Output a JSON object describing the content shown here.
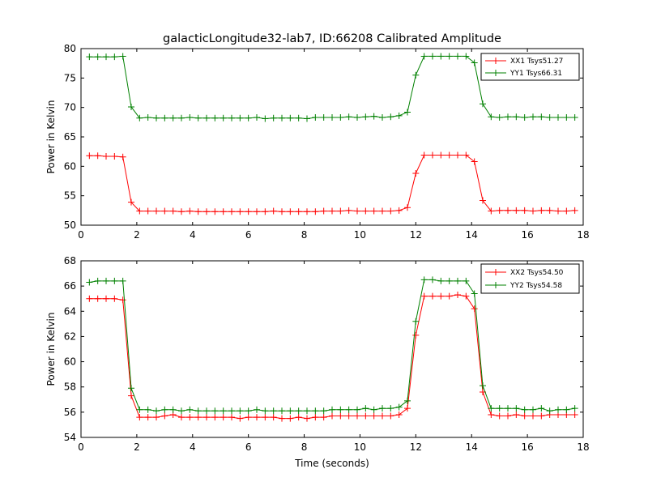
{
  "chart_data": [
    {
      "type": "line",
      "title": "galacticLongitude32-lab7, ID:66208 Calibrated Amplitude",
      "xlabel": "",
      "ylabel": "Power in Kelvin",
      "xlim": [
        0,
        18
      ],
      "ylim": [
        50,
        80
      ],
      "xticks": [
        "0",
        "2",
        "4",
        "6",
        "8",
        "10",
        "12",
        "14",
        "16",
        "18"
      ],
      "yticks": [
        "50",
        "55",
        "60",
        "65",
        "70",
        "75",
        "80"
      ],
      "legend_position": "top-right",
      "grid": false,
      "x": [
        0.3,
        0.6,
        0.9,
        1.2,
        1.5,
        1.8,
        2.1,
        2.4,
        2.7,
        3.0,
        3.3,
        3.6,
        3.9,
        4.2,
        4.5,
        4.8,
        5.1,
        5.4,
        5.7,
        6.0,
        6.3,
        6.6,
        6.9,
        7.2,
        7.5,
        7.8,
        8.1,
        8.4,
        8.7,
        9.0,
        9.3,
        9.6,
        9.9,
        10.2,
        10.5,
        10.8,
        11.1,
        11.4,
        11.7,
        12.0,
        12.3,
        12.6,
        12.9,
        13.2,
        13.5,
        13.8,
        14.1,
        14.4,
        14.7,
        15.0,
        15.3,
        15.6,
        15.9,
        16.2,
        16.5,
        16.8,
        17.1,
        17.4,
        17.7
      ],
      "series": [
        {
          "name": "XX1 Tsys51.27",
          "color": "#ff0000",
          "values": [
            61.8,
            61.8,
            61.7,
            61.7,
            61.6,
            53.9,
            52.4,
            52.4,
            52.4,
            52.4,
            52.4,
            52.3,
            52.4,
            52.3,
            52.3,
            52.3,
            52.3,
            52.3,
            52.3,
            52.3,
            52.3,
            52.3,
            52.4,
            52.3,
            52.3,
            52.3,
            52.3,
            52.3,
            52.4,
            52.4,
            52.4,
            52.5,
            52.4,
            52.4,
            52.4,
            52.4,
            52.4,
            52.5,
            53.0,
            58.8,
            61.9,
            61.9,
            61.9,
            61.9,
            61.9,
            61.9,
            60.8,
            54.2,
            52.4,
            52.5,
            52.5,
            52.5,
            52.5,
            52.4,
            52.5,
            52.5,
            52.4,
            52.4,
            52.5
          ]
        },
        {
          "name": "YY1 Tsys66.31",
          "color": "#008000",
          "values": [
            78.6,
            78.6,
            78.6,
            78.6,
            78.7,
            70.1,
            68.2,
            68.3,
            68.2,
            68.2,
            68.2,
            68.2,
            68.3,
            68.2,
            68.2,
            68.2,
            68.2,
            68.2,
            68.2,
            68.2,
            68.3,
            68.1,
            68.2,
            68.2,
            68.2,
            68.2,
            68.1,
            68.3,
            68.3,
            68.3,
            68.3,
            68.4,
            68.3,
            68.4,
            68.5,
            68.3,
            68.4,
            68.6,
            69.2,
            75.5,
            78.7,
            78.7,
            78.7,
            78.7,
            78.7,
            78.7,
            77.6,
            70.6,
            68.4,
            68.3,
            68.4,
            68.4,
            68.3,
            68.4,
            68.4,
            68.3,
            68.3,
            68.3,
            68.3
          ]
        }
      ]
    },
    {
      "type": "line",
      "title": "",
      "xlabel": "Time (seconds)",
      "ylabel": "Power in Kelvin",
      "xlim": [
        0,
        18
      ],
      "ylim": [
        54,
        68
      ],
      "xticks": [
        "0",
        "2",
        "4",
        "6",
        "8",
        "10",
        "12",
        "14",
        "16",
        "18"
      ],
      "yticks": [
        "54",
        "56",
        "58",
        "60",
        "62",
        "64",
        "66",
        "68"
      ],
      "legend_position": "top-right",
      "grid": false,
      "x": [
        0.3,
        0.6,
        0.9,
        1.2,
        1.5,
        1.8,
        2.1,
        2.4,
        2.7,
        3.0,
        3.3,
        3.6,
        3.9,
        4.2,
        4.5,
        4.8,
        5.1,
        5.4,
        5.7,
        6.0,
        6.3,
        6.6,
        6.9,
        7.2,
        7.5,
        7.8,
        8.1,
        8.4,
        8.7,
        9.0,
        9.3,
        9.6,
        9.9,
        10.2,
        10.5,
        10.8,
        11.1,
        11.4,
        11.7,
        12.0,
        12.3,
        12.6,
        12.9,
        13.2,
        13.5,
        13.8,
        14.1,
        14.4,
        14.7,
        15.0,
        15.3,
        15.6,
        15.9,
        16.2,
        16.5,
        16.8,
        17.1,
        17.4,
        17.7
      ],
      "series": [
        {
          "name": "XX2 Tsys54.50",
          "color": "#ff0000",
          "values": [
            65.0,
            65.0,
            65.0,
            65.0,
            64.9,
            57.3,
            55.6,
            55.6,
            55.6,
            55.7,
            55.8,
            55.6,
            55.6,
            55.6,
            55.6,
            55.6,
            55.6,
            55.6,
            55.5,
            55.6,
            55.6,
            55.6,
            55.6,
            55.5,
            55.5,
            55.6,
            55.5,
            55.6,
            55.6,
            55.7,
            55.7,
            55.7,
            55.7,
            55.7,
            55.7,
            55.7,
            55.7,
            55.8,
            56.3,
            62.1,
            65.2,
            65.2,
            65.2,
            65.2,
            65.3,
            65.2,
            64.2,
            57.6,
            55.8,
            55.7,
            55.7,
            55.8,
            55.7,
            55.7,
            55.7,
            55.8,
            55.8,
            55.8,
            55.8
          ]
        },
        {
          "name": "YY2 Tsys54.58",
          "color": "#008000",
          "values": [
            66.3,
            66.4,
            66.4,
            66.4,
            66.4,
            57.9,
            56.2,
            56.2,
            56.1,
            56.2,
            56.2,
            56.1,
            56.2,
            56.1,
            56.1,
            56.1,
            56.1,
            56.1,
            56.1,
            56.1,
            56.2,
            56.1,
            56.1,
            56.1,
            56.1,
            56.1,
            56.1,
            56.1,
            56.1,
            56.2,
            56.2,
            56.2,
            56.2,
            56.3,
            56.2,
            56.3,
            56.3,
            56.4,
            56.9,
            63.2,
            66.5,
            66.5,
            66.4,
            66.4,
            66.4,
            66.4,
            65.4,
            58.1,
            56.3,
            56.3,
            56.3,
            56.3,
            56.2,
            56.2,
            56.3,
            56.1,
            56.2,
            56.2,
            56.3
          ]
        }
      ]
    }
  ]
}
